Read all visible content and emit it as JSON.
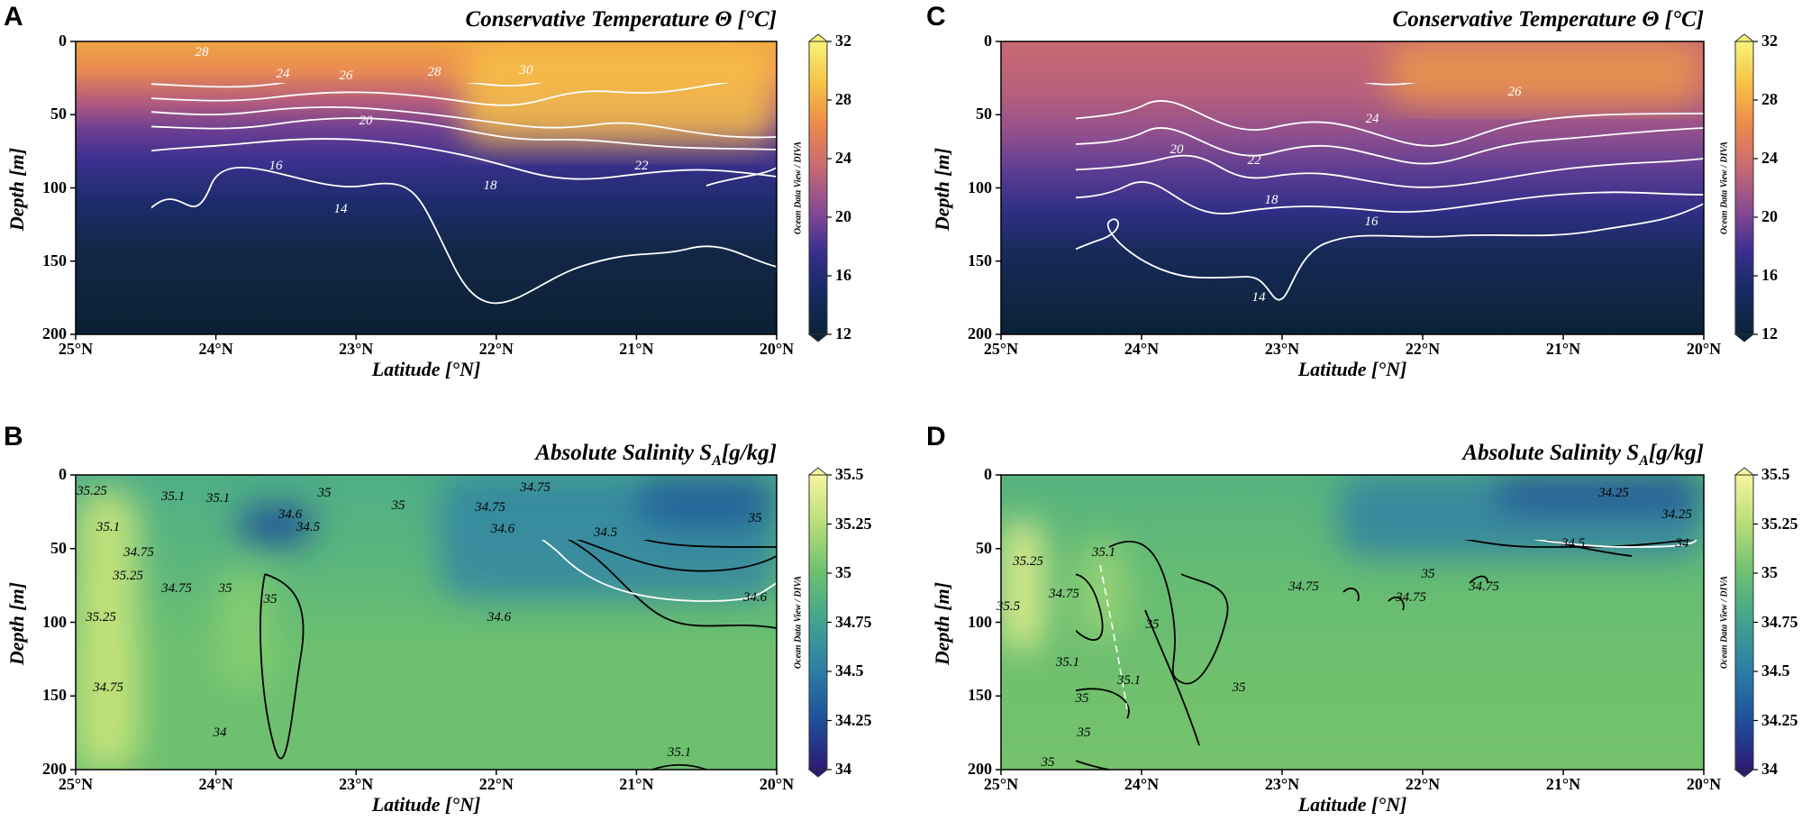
{
  "colors": {
    "temp_stops": [
      "#0b2438",
      "#152a62",
      "#3b2f8f",
      "#8a4c93",
      "#c86a72",
      "#ec8a4b",
      "#f8c244",
      "#f6f47a"
    ],
    "sal_stops": [
      "#2c1a74",
      "#1f4f9a",
      "#2b7da6",
      "#3fa38f",
      "#6cc070",
      "#b8dd78",
      "#f6f5a0"
    ]
  },
  "chart_data": [
    {
      "panel": "A",
      "type": "heatmap",
      "title": "Conservative Temperature Θ [°C]",
      "xlabel": "Latitude [°N]",
      "ylabel": "Depth [m]",
      "x_ticks": [
        "25°N",
        "24°N",
        "23°N",
        "22°N",
        "21°N",
        "20°N"
      ],
      "y_ticks": [
        "0",
        "50",
        "100",
        "150",
        "200"
      ],
      "xlim": [
        25,
        20
      ],
      "ylim": [
        0,
        200
      ],
      "colorbar": {
        "min": 12,
        "max": 32,
        "ticks": [
          "32",
          "28",
          "24",
          "20",
          "16",
          "12"
        ]
      },
      "credit": "Ocean Data View / DIVA",
      "contour_labels": [
        "28",
        "24",
        "26",
        "28",
        "30",
        "20",
        "16",
        "18",
        "22",
        "14"
      ]
    },
    {
      "panel": "B",
      "type": "heatmap",
      "title": "Absolute Salinity S",
      "title_sub": "A",
      "title_unit": "[g/kg]",
      "xlabel": "Latitude [°N]",
      "ylabel": "Depth [m]",
      "x_ticks": [
        "25°N",
        "24°N",
        "23°N",
        "22°N",
        "21°N",
        "20°N"
      ],
      "y_ticks": [
        "0",
        "50",
        "100",
        "150",
        "200"
      ],
      "xlim": [
        25,
        20
      ],
      "ylim": [
        0,
        200
      ],
      "colorbar": {
        "min": 34,
        "max": 35.5,
        "ticks": [
          "35.5",
          "35.25",
          "35",
          "34.75",
          "34.5",
          "34.25",
          "34"
        ]
      },
      "credit": "Ocean Data View / DIVA",
      "contour_labels": [
        "35.25",
        "35.1",
        "35.1",
        "35.1",
        "34.75",
        "35.25",
        "35.25",
        "34.75",
        "35",
        "35",
        "35",
        "34.6",
        "34.5",
        "35",
        "34.75",
        "34.6",
        "34.75",
        "34.5",
        "34.6",
        "34.6",
        "34.75",
        "35.1",
        "35",
        "34"
      ]
    },
    {
      "panel": "C",
      "type": "heatmap",
      "title": "Conservative Temperature Θ [°C]",
      "xlabel": "Latitude [°N]",
      "ylabel": "Depth [m]",
      "x_ticks": [
        "25°N",
        "24°N",
        "23°N",
        "22°N",
        "21°N",
        "20°N"
      ],
      "y_ticks": [
        "0",
        "50",
        "100",
        "150",
        "200"
      ],
      "xlim": [
        25,
        20
      ],
      "ylim": [
        0,
        200
      ],
      "colorbar": {
        "min": 12,
        "max": 32,
        "ticks": [
          "32",
          "28",
          "24",
          "20",
          "16",
          "12"
        ]
      },
      "credit": "Ocean Data View / DIVA",
      "contour_labels": [
        "24",
        "26",
        "20",
        "22",
        "18",
        "16",
        "14"
      ]
    },
    {
      "panel": "D",
      "type": "heatmap",
      "title": "Absolute Salinity S",
      "title_sub": "A",
      "title_unit": "[g/kg]",
      "xlabel": "Latitude [°N]",
      "ylabel": "Depth [m]",
      "x_ticks": [
        "25°N",
        "24°N",
        "23°N",
        "22°N",
        "21°N",
        "20°N"
      ],
      "y_ticks": [
        "0",
        "50",
        "100",
        "150",
        "200"
      ],
      "xlim": [
        25,
        20
      ],
      "ylim": [
        0,
        200
      ],
      "colorbar": {
        "min": 34,
        "max": 35.5,
        "ticks": [
          "35.5",
          "35.25",
          "35",
          "34.75",
          "34.5",
          "34.25",
          "34"
        ]
      },
      "credit": "Ocean Data View / DIVA",
      "contour_labels": [
        "34.25",
        "34.25",
        "34.5",
        "34",
        "35.25",
        "35.1",
        "34.75",
        "35",
        "34.75",
        "34.75",
        "34.75",
        "35",
        "35.1",
        "35.1",
        "35",
        "35",
        "35",
        "35",
        "35.5"
      ]
    }
  ]
}
